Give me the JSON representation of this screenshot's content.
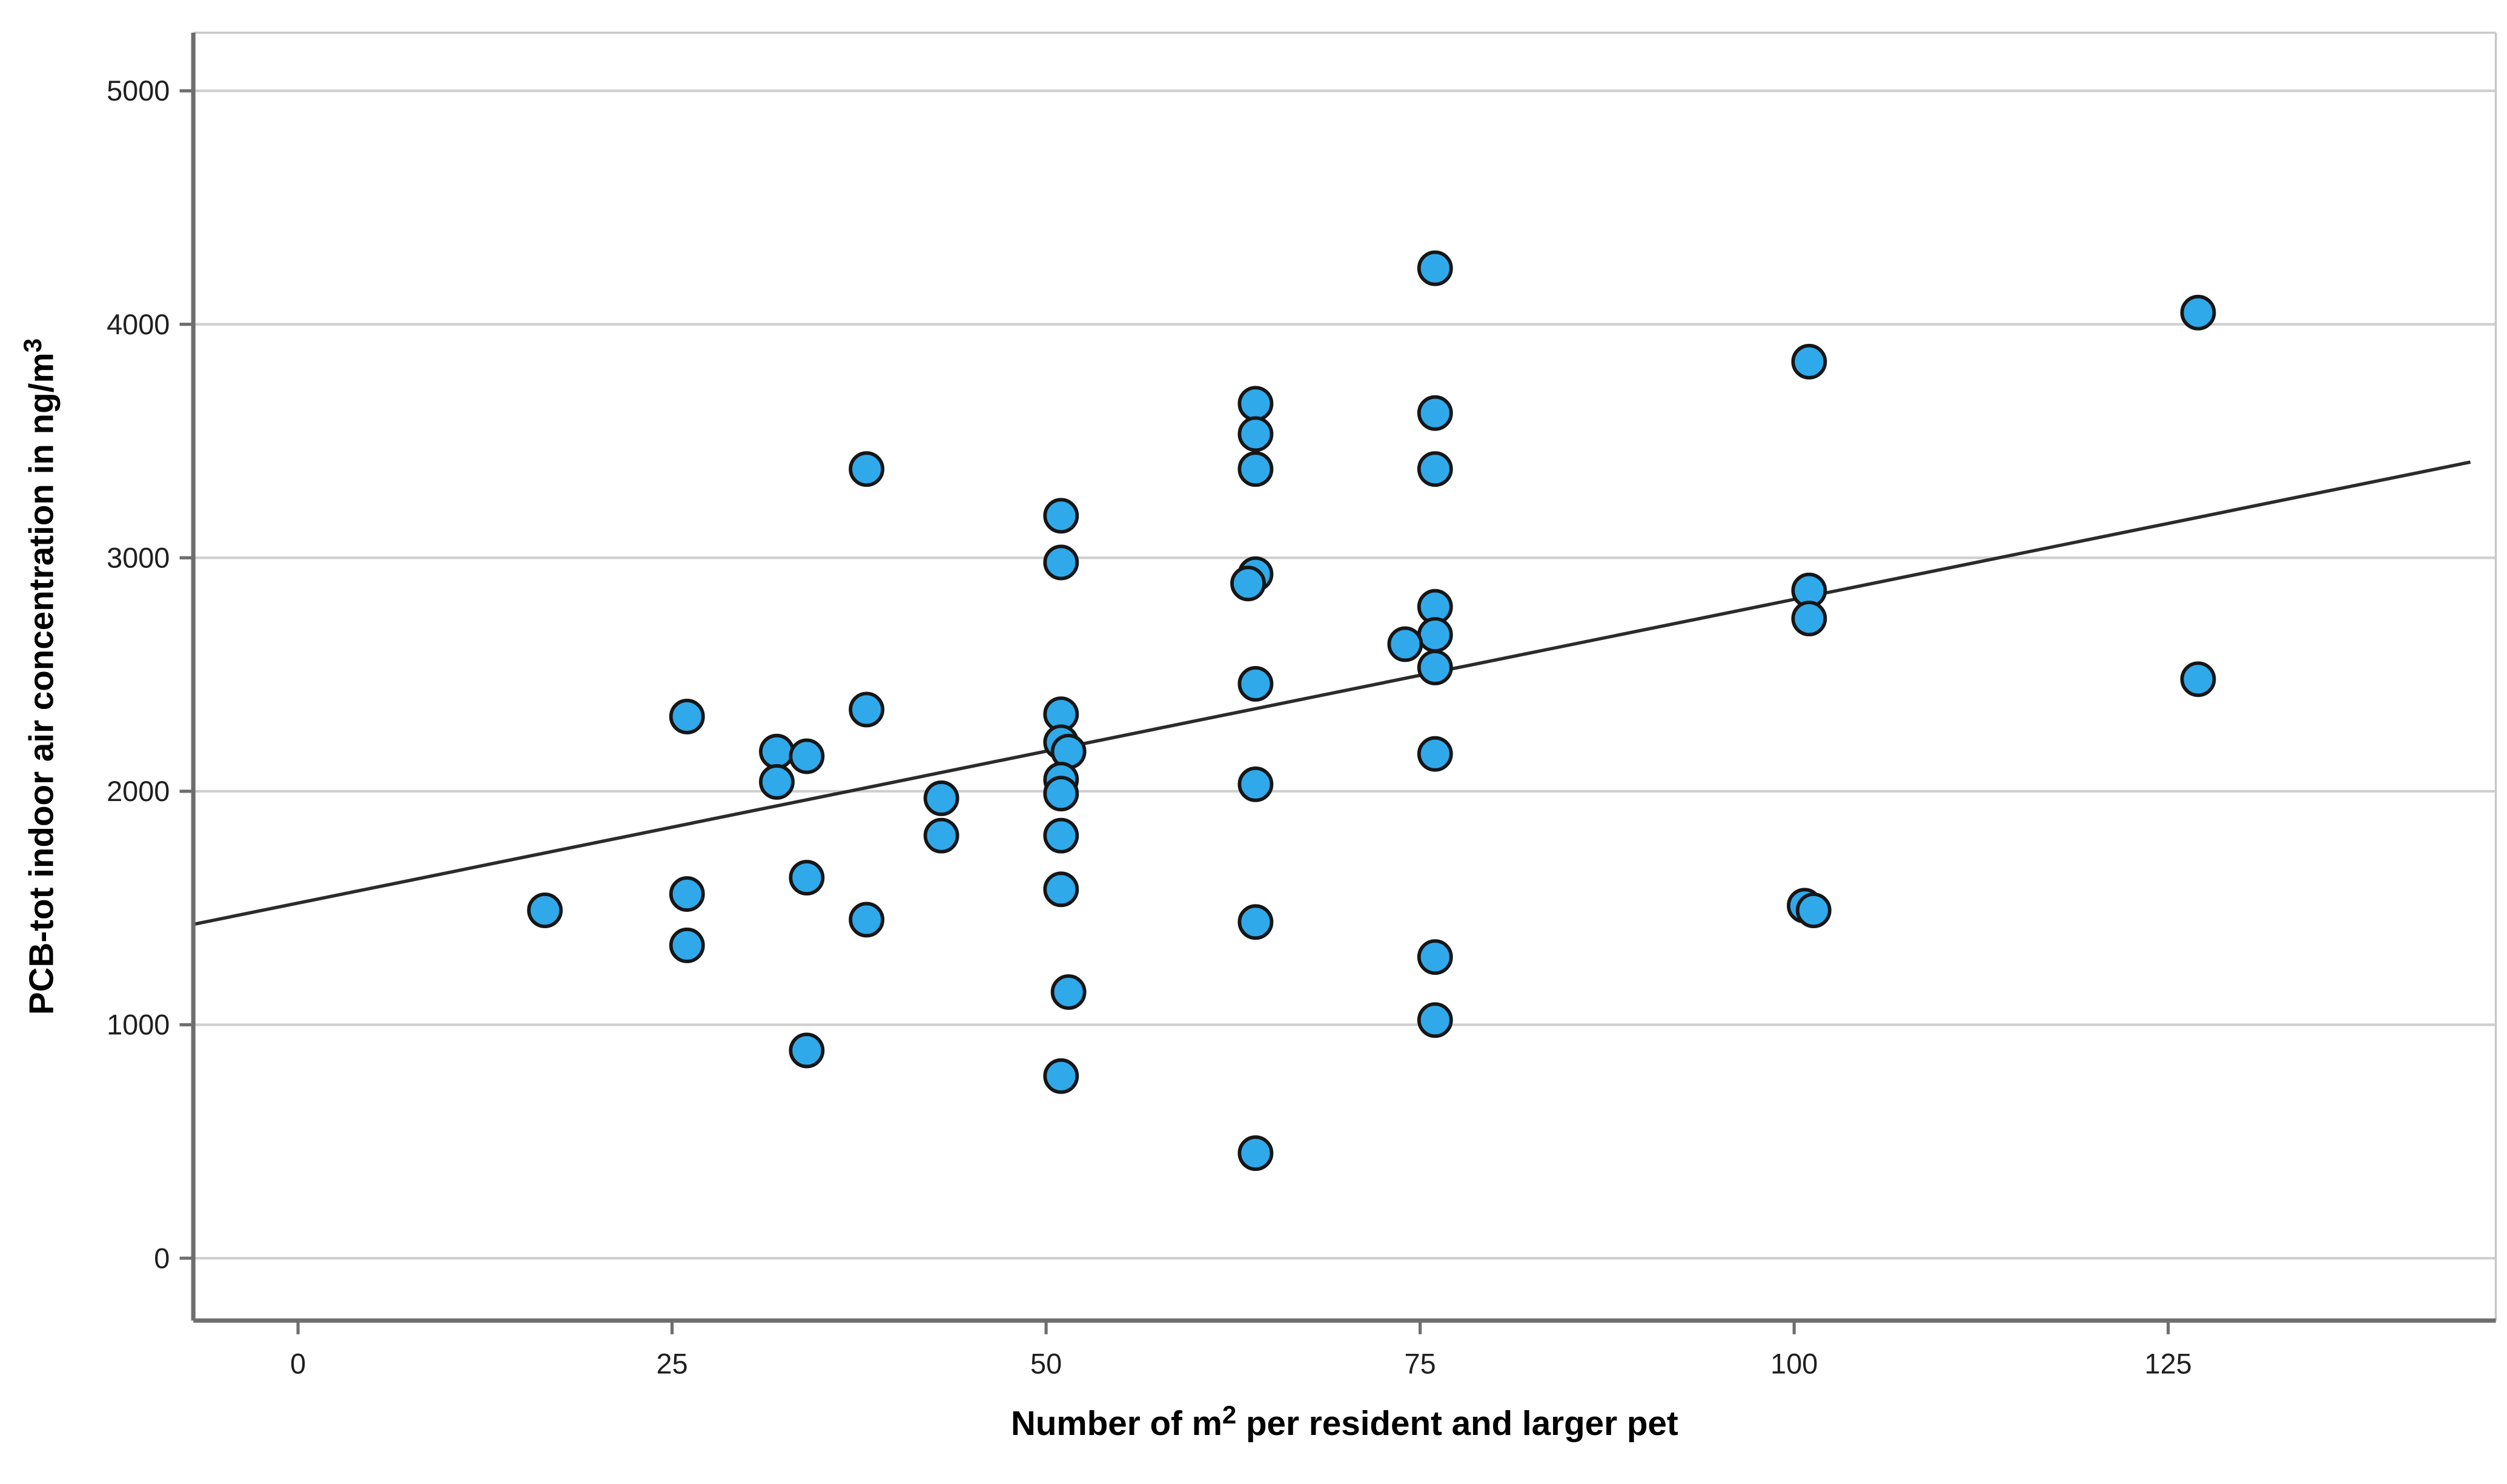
{
  "chart_data": {
    "type": "scatter",
    "title": "",
    "xlabel": "Number of m² per resident and larger pet",
    "ylabel": "PCB-tot indoor air concentration in ng/m³",
    "xlabel_parts": [
      "Number of m",
      "2",
      " per resident and larger pet"
    ],
    "ylabel_parts": [
      "PCB-tot indoor air concentration in ng/m",
      "3"
    ],
    "x_ticks": [
      "0",
      "25",
      "50",
      "75",
      "100",
      "125"
    ],
    "x_tick_values": [
      0,
      25,
      50,
      75,
      100,
      125
    ],
    "y_ticks": [
      "0",
      "1000",
      "2000",
      "3000",
      "4000",
      "5000"
    ],
    "y_tick_values": [
      0,
      1000,
      2000,
      3000,
      4000,
      5000
    ],
    "xlim": [
      -7.0,
      146.9
    ],
    "ylim": [
      -267,
      5249
    ],
    "grid": "horizontal-only",
    "legend_position": "none",
    "colors": {
      "marker_fill": "#2FA9EA",
      "marker_stroke": "#161616",
      "grid": "#cfcfcf",
      "axis": "#6e6e6e",
      "frame": "#c8c8c8",
      "fit_line": "#2b2b2b",
      "tick_text": "#1f1f1f",
      "title_text": "#000000"
    },
    "fit_line": {
      "x1": -7.0,
      "y1": 1430,
      "x2": 145.2,
      "y2": 3410
    },
    "points": [
      [
        16.5,
        1490
      ],
      [
        26,
        2320
      ],
      [
        26,
        1560
      ],
      [
        26,
        1340
      ],
      [
        32,
        2170
      ],
      [
        32,
        2040
      ],
      [
        34,
        2150
      ],
      [
        34,
        1630
      ],
      [
        34,
        890
      ],
      [
        38,
        3380
      ],
      [
        38,
        2350
      ],
      [
        38,
        1450
      ],
      [
        43,
        1970
      ],
      [
        43,
        1810
      ],
      [
        51,
        3180
      ],
      [
        51,
        2980
      ],
      [
        51,
        2330
      ],
      [
        51,
        2210
      ],
      [
        51.5,
        2170
      ],
      [
        51,
        2050
      ],
      [
        51,
        1990
      ],
      [
        51,
        1810
      ],
      [
        51,
        1580
      ],
      [
        51.5,
        1140
      ],
      [
        51,
        780
      ],
      [
        64,
        3660
      ],
      [
        64,
        3530
      ],
      [
        64,
        3380
      ],
      [
        64,
        2930
      ],
      [
        63.5,
        2890
      ],
      [
        64,
        2460
      ],
      [
        64,
        2030
      ],
      [
        64,
        1440
      ],
      [
        64,
        450
      ],
      [
        76,
        4240
      ],
      [
        76,
        3620
      ],
      [
        76,
        3380
      ],
      [
        76,
        2790
      ],
      [
        76,
        2670
      ],
      [
        74,
        2630
      ],
      [
        76,
        2530
      ],
      [
        76,
        2160
      ],
      [
        76,
        1290
      ],
      [
        76,
        1020
      ],
      [
        101,
        3840
      ],
      [
        101,
        2860
      ],
      [
        101,
        2740
      ],
      [
        100.7,
        1510
      ],
      [
        101.3,
        1490
      ],
      [
        127,
        4050
      ],
      [
        127,
        2480
      ]
    ]
  }
}
